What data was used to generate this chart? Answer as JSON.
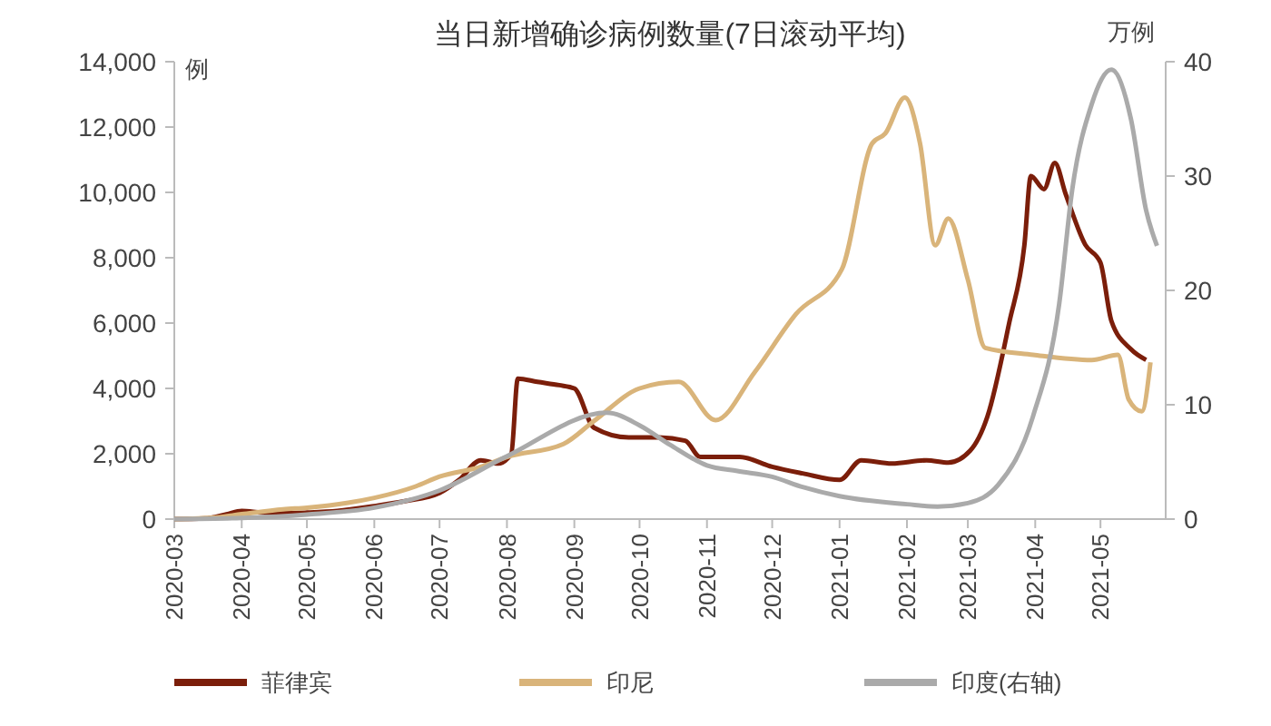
{
  "chart_data": {
    "type": "line",
    "title": "当日新增确诊病例数量(7日滚动平均)",
    "annotations": [
      "例",
      "万例"
    ],
    "xlim": [
      "2020-03-01",
      "2021-05-31"
    ],
    "xticks": [
      {
        "value": "2020-03-01",
        "label": "2020-03"
      },
      {
        "value": "2020-04-01",
        "label": "2020-04"
      },
      {
        "value": "2020-05-01",
        "label": "2020-05"
      },
      {
        "value": "2020-06-01",
        "label": "2020-06"
      },
      {
        "value": "2020-07-01",
        "label": "2020-07"
      },
      {
        "value": "2020-08-01",
        "label": "2020-08"
      },
      {
        "value": "2020-09-01",
        "label": "2020-09"
      },
      {
        "value": "2020-10-01",
        "label": "2020-10"
      },
      {
        "value": "2020-11-01",
        "label": "2020-11"
      },
      {
        "value": "2020-12-01",
        "label": "2020-12"
      },
      {
        "value": "2021-01-01",
        "label": "2021-01"
      },
      {
        "value": "2021-02-01",
        "label": "2021-02"
      },
      {
        "value": "2021-03-01",
        "label": "2021-03"
      },
      {
        "value": "2021-04-01",
        "label": "2021-04"
      },
      {
        "value": "2021-05-01",
        "label": "2021-05"
      }
    ],
    "ylim": [
      0,
      14000
    ],
    "yticks": [
      {
        "value": 0,
        "label": "0"
      },
      {
        "value": 2000,
        "label": "2,000"
      },
      {
        "value": 4000,
        "label": "4,000"
      },
      {
        "value": 6000,
        "label": "6,000"
      },
      {
        "value": 8000,
        "label": "8,000"
      },
      {
        "value": 10000,
        "label": "10,000"
      },
      {
        "value": 12000,
        "label": "12,000"
      },
      {
        "value": 14000,
        "label": "14,000"
      }
    ],
    "y2lim": [
      0,
      40
    ],
    "y2ticks": [
      0,
      10,
      20,
      30,
      40
    ],
    "legend": "bottom",
    "grid": false,
    "line_style": "solid",
    "series": [
      {
        "name": "菲律宾",
        "color": "#7b1e0a",
        "x": [
          "2020-03-01",
          "2020-03-15",
          "2020-03-25",
          "2020-04-01",
          "2020-04-10",
          "2020-04-20",
          "2020-05-01",
          "2020-05-15",
          "2020-06-01",
          "2020-06-15",
          "2020-07-01",
          "2020-07-10",
          "2020-07-20",
          "2020-07-28",
          "2020-08-03",
          "2020-08-06",
          "2020-08-15",
          "2020-08-25",
          "2020-09-01",
          "2020-09-10",
          "2020-09-26",
          "2020-10-10",
          "2020-10-22",
          "2020-10-29",
          "2020-11-16",
          "2020-12-01",
          "2020-12-15",
          "2021-01-01",
          "2021-01-11",
          "2021-01-25",
          "2021-02-10",
          "2021-02-20",
          "2021-03-02",
          "2021-03-10",
          "2021-03-20",
          "2021-03-27",
          "2021-03-30",
          "2021-04-05",
          "2021-04-10",
          "2021-04-15",
          "2021-04-24",
          "2021-05-01",
          "2021-05-06",
          "2021-05-15",
          "2021-05-22"
        ],
        "values": [
          0,
          20,
          150,
          250,
          200,
          180,
          200,
          250,
          400,
          550,
          800,
          1200,
          1800,
          1700,
          2000,
          4300,
          4200,
          4100,
          4000,
          2800,
          2500,
          2500,
          2400,
          1900,
          1900,
          1600,
          1400,
          1200,
          1800,
          1700,
          1800,
          1730,
          2090,
          3140,
          6000,
          8380,
          10500,
          10100,
          10900,
          9950,
          8400,
          7850,
          6070,
          5200,
          4870
        ]
      },
      {
        "name": "印尼",
        "color": "#d9b47a",
        "x": [
          "2020-03-01",
          "2020-03-20",
          "2020-04-01",
          "2020-04-20",
          "2020-05-01",
          "2020-05-20",
          "2020-06-01",
          "2020-06-20",
          "2020-07-01",
          "2020-07-20",
          "2020-08-01",
          "2020-08-27",
          "2020-09-10",
          "2020-10-01",
          "2020-10-19",
          "2020-11-05",
          "2020-11-23",
          "2020-12-12",
          "2021-01-02",
          "2021-01-16",
          "2021-01-22",
          "2021-01-31",
          "2021-02-07",
          "2021-02-14",
          "2021-02-20",
          "2021-03-01",
          "2021-03-09",
          "2021-03-31",
          "2021-04-27",
          "2021-05-09",
          "2021-05-14",
          "2021-05-20",
          "2021-05-24"
        ],
        "values": [
          0,
          50,
          150,
          300,
          350,
          500,
          650,
          1000,
          1300,
          1600,
          1900,
          2300,
          3000,
          4000,
          4200,
          3030,
          4500,
          6280,
          7640,
          11500,
          11800,
          12900,
          11500,
          8380,
          9200,
          7330,
          5240,
          5030,
          4870,
          5030,
          3660,
          3300,
          4800
        ]
      },
      {
        "name": "印度(右轴)",
        "color": "#aaaaaa",
        "axis": "y2",
        "x": [
          "2020-03-01",
          "2020-04-01",
          "2020-05-01",
          "2020-06-01",
          "2020-07-01",
          "2020-08-01",
          "2020-09-16",
          "2020-10-01",
          "2020-10-15",
          "2020-11-01",
          "2020-11-15",
          "2020-12-01",
          "2020-12-15",
          "2021-01-01",
          "2021-02-01",
          "2021-02-15",
          "2021-03-01",
          "2021-03-15",
          "2021-03-31",
          "2021-04-12",
          "2021-04-18",
          "2021-04-27",
          "2021-05-06",
          "2021-05-15",
          "2021-05-22",
          "2021-05-27"
        ],
        "values": [
          0,
          0.1,
          0.4,
          1.0,
          2.5,
          5.5,
          9.3,
          8.2,
          6.5,
          4.7,
          4.2,
          3.7,
          2.8,
          2.0,
          1.3,
          1.1,
          1.4,
          3.0,
          9.0,
          18.8,
          28.8,
          36.3,
          39.3,
          35,
          27,
          23.9
        ]
      }
    ]
  }
}
